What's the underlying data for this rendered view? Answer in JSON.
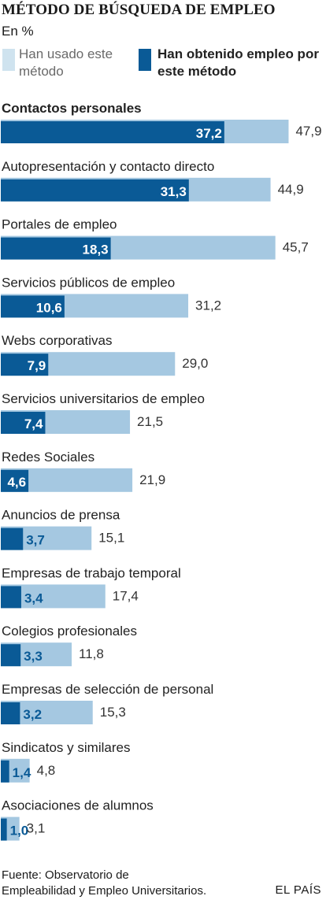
{
  "header": {
    "title": "MÉTODO DE BÚSQUEDA DE EMPLEO",
    "subtitle": "En %"
  },
  "legend": {
    "used_label": "Han usado este método",
    "obtained_label": "Han obtenido empleo por este método",
    "used_color": "#a5c8e1",
    "obtained_color": "#0a5a96"
  },
  "chart_data": {
    "type": "bar",
    "orientation": "horizontal",
    "title": "MÉTODO DE BÚSQUEDA DE EMPLEO",
    "subtitle": "En %",
    "categories": [
      "Contactos personales",
      "Autopresentación y contacto directo",
      "Portales de empleo",
      "Servicios públicos de empleo",
      "Webs corporativas",
      "Servicios universitarios de empleo",
      "Redes Sociales",
      "Anuncios de prensa",
      "Empresas de trabajo temporal",
      "Colegios profesionales",
      "Empresas de selección de personal",
      "Sindicatos y similares",
      "Asociaciones de alumnos"
    ],
    "series": [
      {
        "name": "Han usado este método",
        "values": [
          47.9,
          44.9,
          45.7,
          31.2,
          29.0,
          21.5,
          21.9,
          15.1,
          17.4,
          11.8,
          15.3,
          4.8,
          3.1
        ],
        "labels": [
          "47,9",
          "44,9",
          "45,7",
          "31,2",
          "29,0",
          "21,5",
          "21,9",
          "15,1",
          "17,4",
          "11,8",
          "15,3",
          "4,8",
          "3,1"
        ]
      },
      {
        "name": "Han obtenido empleo por este método",
        "values": [
          37.2,
          31.3,
          18.3,
          10.6,
          7.9,
          7.4,
          4.6,
          3.7,
          3.4,
          3.3,
          3.2,
          1.4,
          1.0
        ],
        "labels": [
          "37,2",
          "31,3",
          "18,3",
          "10,6",
          "7,9",
          "7,4",
          "4,6",
          "3,7",
          "3,4",
          "3,3",
          "3,2",
          "1,4",
          "1,0"
        ]
      }
    ],
    "xlim": [
      0,
      50
    ],
    "grid": false,
    "legend_position": "top"
  },
  "footer": {
    "source_line1": "Fuente: Observatorio de",
    "source_line2": "Empleabilidad y Empleo Universitarios.",
    "brand": "EL PAÍS"
  }
}
